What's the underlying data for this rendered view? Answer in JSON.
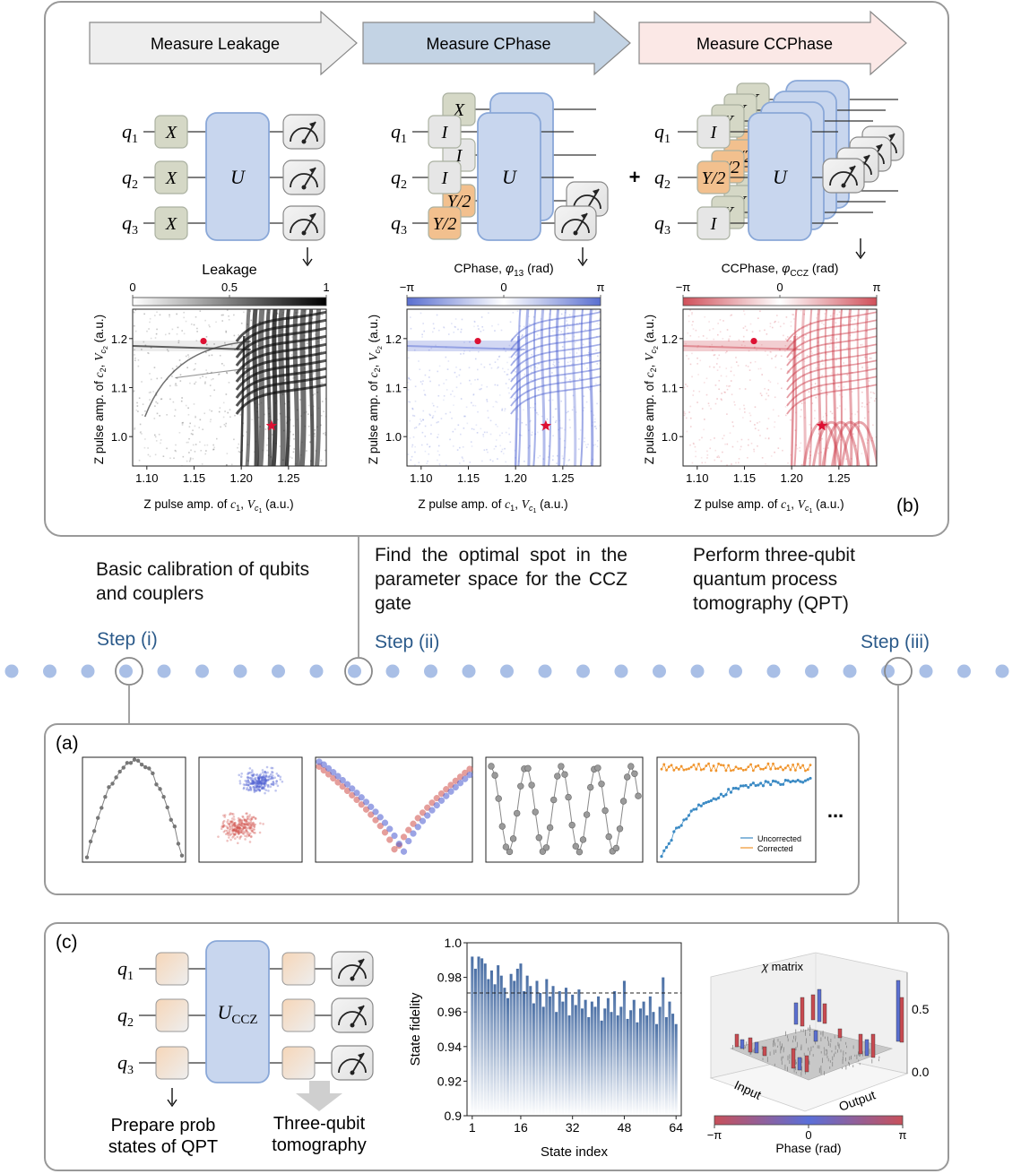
{
  "banner": {
    "arrows": [
      {
        "label": "Measure Leakage",
        "color": "#eeeeee"
      },
      {
        "label": "Measure CPhase",
        "color": "#c3d3e4"
      },
      {
        "label": "Measure CCPhase",
        "color": "#fbe8e6"
      }
    ]
  },
  "qubits": [
    "q",
    "q",
    "q"
  ],
  "qubit_subs": [
    "1",
    "2",
    "3"
  ],
  "gates": {
    "leakage": [
      "X",
      "X",
      "X"
    ],
    "cphase_front": [
      "I",
      "I",
      "Y/2"
    ],
    "cphase_back": [
      "X",
      "I",
      "Y/2"
    ],
    "ccphase_front": [
      "I",
      "Y/2",
      "I"
    ],
    "ccphase_back": [
      "Y",
      "Y/2",
      "Y"
    ],
    "unitary": "U",
    "ccz": "U",
    "ccz_sub": "CCZ",
    "plus": "+"
  },
  "maps": {
    "leakage": {
      "title": "Leakage",
      "ticks": [
        "0",
        "0.5",
        "1"
      ],
      "colors": [
        "#ffffff",
        "#000000"
      ]
    },
    "cphase": {
      "title": "CPhase, ",
      "title_sym": "φ",
      "title_sub": "13",
      "title_unit": " (rad)",
      "ticks": [
        "−π",
        "0",
        "π"
      ],
      "colors": [
        "#5a6fd0",
        "#ffffff",
        "#5a6fd0"
      ]
    },
    "ccphase": {
      "title": "CCPhase, ",
      "title_sym": "φ",
      "title_sub": "CCZ",
      "title_unit": " (rad)",
      "ticks": [
        "−π",
        "0",
        "π"
      ],
      "colors": [
        "#d0505a",
        "#ffffff",
        "#d0505a"
      ]
    },
    "xlabel": "Z pulse amp. of c₁, V꜀₁ (a.u.)",
    "xlabel_pre": "Z pulse amp. of ",
    "xlabel_c": "c",
    "xlabel_csub": "1",
    "xlabel_V": "V",
    "xlabel_Vsub": "c",
    "xlabel_Vsubsub": "1",
    "xlabel_post": " (a.u.)",
    "ylabel_pre": "Z pulse amp. of ",
    "ylabel_c": "c",
    "ylabel_csub": "2",
    "ylabel_V": "V",
    "ylabel_Vsub": "c",
    "ylabel_Vsubsub": "2",
    "ylabel_post": " (a.u.)",
    "x_ticks": [
      "1.10",
      "1.15",
      "1.20",
      "1.25"
    ],
    "y_ticks": [
      "1.0",
      "1.1",
      "1.2"
    ],
    "panel_label": "(b)"
  },
  "steps": {
    "text1": "Basic calibration of qubits and couplers",
    "text2": "Find the optimal spot in the parameter space for the CCZ gate",
    "text3": "Perform three-qubit quantum process tomography (QPT)",
    "label1": "Step (i)",
    "label2": "Step (ii)",
    "label3": "Step (iii)"
  },
  "panel_a": {
    "label": "(a)",
    "ellipsis": "...",
    "legend": [
      "Uncorrected",
      "Corrected"
    ],
    "colors": {
      "grey": "#808080",
      "blue": "#4a5bd0",
      "red": "#d0504a",
      "lightblue": "#3b8ac4",
      "orange": "#f0942c"
    }
  },
  "panel_c": {
    "label": "(c)",
    "caption1_line1": "Prepare prob",
    "caption1_line2": "states of QPT",
    "caption2_line1": "Three-qubit",
    "caption2_line2": "tomography",
    "chi_title": "matrix",
    "chi_sym": "χ",
    "chi_input": "Input",
    "chi_output": "Output",
    "chi_ticks": [
      "0.5",
      "0.0"
    ],
    "phase_label": "Phase (rad)",
    "phase_ticks": [
      "−π",
      "0",
      "π"
    ]
  },
  "chart_data": {
    "type": "bar",
    "xlabel": "State index",
    "ylabel": "State fidelity",
    "ylim": [
      0.9,
      1.0
    ],
    "x_ticks": [
      1,
      16,
      32,
      48,
      64
    ],
    "y_ticks": [
      "0.9",
      "0.92",
      "0.94",
      "0.96",
      "0.98",
      "1.0"
    ],
    "reference_line": 0.971,
    "x": [
      1,
      2,
      3,
      4,
      5,
      6,
      7,
      8,
      9,
      10,
      11,
      12,
      13,
      14,
      15,
      16,
      17,
      18,
      19,
      20,
      21,
      22,
      23,
      24,
      25,
      26,
      27,
      28,
      29,
      30,
      31,
      32,
      33,
      34,
      35,
      36,
      37,
      38,
      39,
      40,
      41,
      42,
      43,
      44,
      45,
      46,
      47,
      48,
      49,
      50,
      51,
      52,
      53,
      54,
      55,
      56,
      57,
      58,
      59,
      60,
      61,
      62,
      63,
      64
    ],
    "values": [
      0.992,
      0.985,
      0.992,
      0.991,
      0.988,
      0.979,
      0.984,
      0.976,
      0.987,
      0.981,
      0.974,
      0.968,
      0.982,
      0.978,
      0.985,
      0.988,
      0.972,
      0.981,
      0.975,
      0.965,
      0.978,
      0.971,
      0.963,
      0.979,
      0.969,
      0.975,
      0.96,
      0.972,
      0.966,
      0.974,
      0.958,
      0.97,
      0.964,
      0.973,
      0.962,
      0.967,
      0.957,
      0.966,
      0.963,
      0.969,
      0.955,
      0.962,
      0.968,
      0.96,
      0.972,
      0.958,
      0.963,
      0.978,
      0.956,
      0.961,
      0.967,
      0.954,
      0.962,
      0.966,
      0.958,
      0.969,
      0.96,
      0.953,
      0.963,
      0.98,
      0.957,
      0.966,
      0.959,
      0.953
    ]
  }
}
